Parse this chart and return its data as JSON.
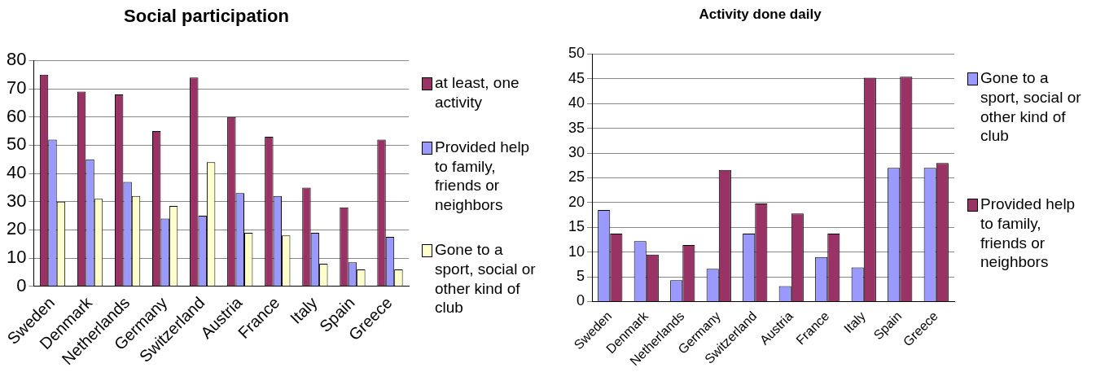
{
  "chart_data": [
    {
      "type": "bar",
      "title": "Social participation",
      "categories": [
        "Sweden",
        "Denmark",
        "Netherlands",
        "Germany",
        "Switzerland",
        "Austria",
        "France",
        "Italy",
        "Spain",
        "Greece"
      ],
      "series": [
        {
          "name": "at least, one activity",
          "color": "#993366",
          "values": [
            75,
            69,
            68,
            55,
            74,
            60,
            53,
            35,
            28,
            52
          ]
        },
        {
          "name": "Provided help to family, friends or neighbors",
          "color": "#9999ff",
          "values": [
            52,
            45,
            37,
            24,
            25,
            33,
            32,
            19,
            8.5,
            17.5
          ]
        },
        {
          "name": "Gone to a sport, social or other kind of club",
          "color": "#ffffcc",
          "values": [
            30,
            31,
            32,
            28.5,
            44,
            19,
            18,
            8,
            6,
            6
          ]
        }
      ],
      "ylim": [
        0,
        80
      ],
      "yticks": [
        0,
        10,
        20,
        30,
        40,
        50,
        60,
        70,
        80
      ],
      "grid": "y",
      "legend": "right"
    },
    {
      "type": "bar",
      "title": "Activity done daily",
      "categories": [
        "Sweden",
        "Denmark",
        "Netherlands",
        "Germany",
        "Switzerland",
        "Austria",
        "France",
        "Italy",
        "Spain",
        "Greece"
      ],
      "series": [
        {
          "name": "Gone to a sport, social or other kind of club",
          "color": "#9999ff",
          "values": [
            18.5,
            12.2,
            4.3,
            6.6,
            13.7,
            3.1,
            9,
            6.9,
            27,
            27
          ]
        },
        {
          "name": "Provided help to family, friends or neighbors",
          "color": "#993366",
          "values": [
            13.7,
            9.5,
            11.4,
            26.6,
            19.8,
            17.8,
            13.7,
            45.2,
            45.4,
            28
          ]
        }
      ],
      "ylim": [
        0,
        50
      ],
      "yticks": [
        0,
        5,
        10,
        15,
        20,
        25,
        30,
        35,
        40,
        45,
        50
      ],
      "grid": "y",
      "legend": "right"
    }
  ]
}
